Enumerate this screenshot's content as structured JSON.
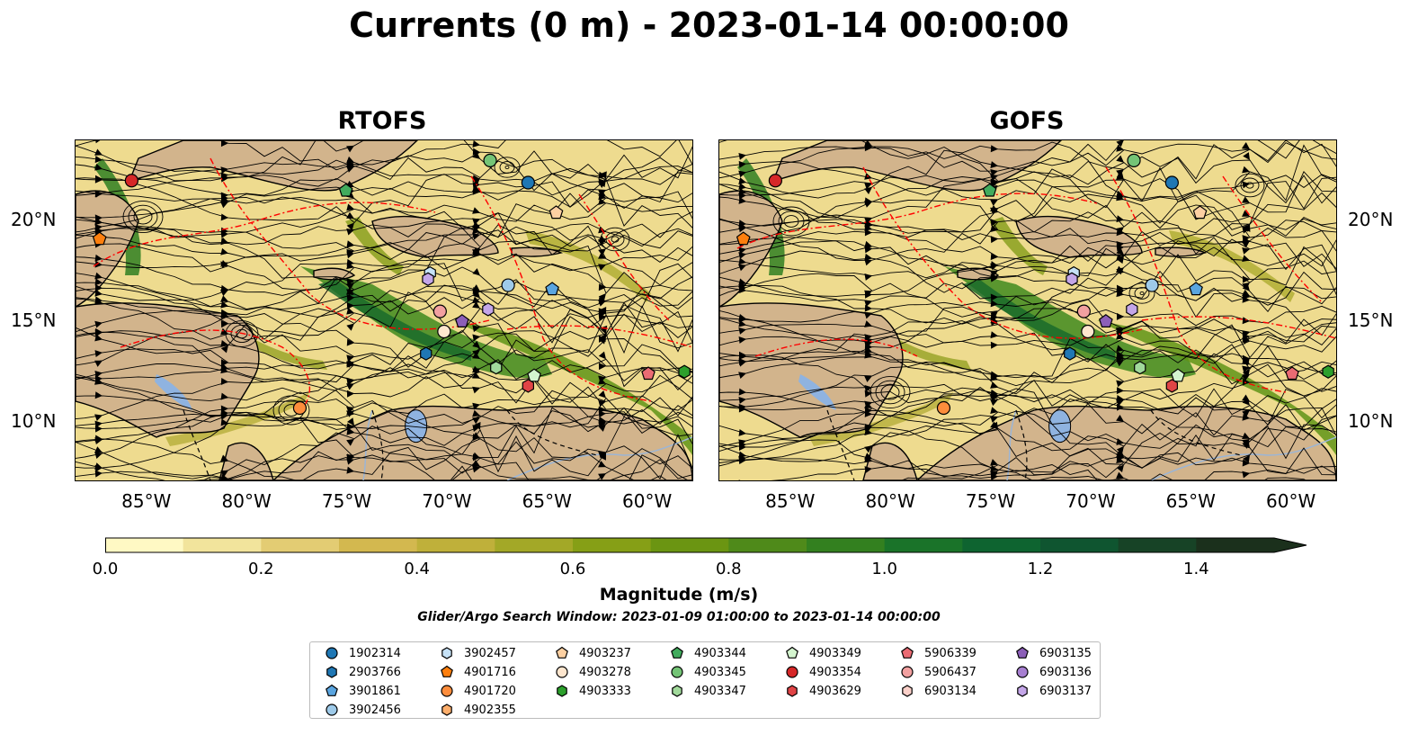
{
  "title": "Currents (0 m) - 2023-01-14 00:00:00",
  "panels": [
    {
      "title": "RTOFS"
    },
    {
      "title": "GOFS"
    }
  ],
  "axes": {
    "lat_labels": [
      "20°N",
      "15°N",
      "10°N"
    ],
    "lon_labels": [
      "85°W",
      "80°W",
      "75°W",
      "70°W",
      "65°W",
      "60°W"
    ]
  },
  "colorbar": {
    "title": "Magnitude (m/s)",
    "tick_labels": [
      "0.0",
      "0.2",
      "0.4",
      "0.6",
      "0.8",
      "1.0",
      "1.2",
      "1.4"
    ],
    "colors": [
      "#fff9c4",
      "#f2e49c",
      "#e3cc73",
      "#d3b84f",
      "#bfb03a",
      "#a3a827",
      "#869f16",
      "#6b9512",
      "#4f8a1a",
      "#33801f",
      "#1a7329",
      "#0e6430",
      "#0f5530",
      "#174326",
      "#1b301c"
    ]
  },
  "search_window": "Glider/Argo Search Window: 2023-01-09 01:00:00 to 2023-01-14 00:00:00",
  "legend": [
    {
      "label": "1902314",
      "marker": "circle",
      "color": "#1f77b4"
    },
    {
      "label": "2903766",
      "marker": "hexagon",
      "color": "#1f77b4"
    },
    {
      "label": "3901861",
      "marker": "pentagon",
      "color": "#5aa5e0"
    },
    {
      "label": "3902456",
      "marker": "circle",
      "color": "#9ecae9"
    },
    {
      "label": "3902457",
      "marker": "hexagon",
      "color": "#c6e2f7"
    },
    {
      "label": "4901716",
      "marker": "pentagon",
      "color": "#fd7f0e"
    },
    {
      "label": "4901720",
      "marker": "circle",
      "color": "#fd8d3c"
    },
    {
      "label": "4902355",
      "marker": "hexagon",
      "color": "#fdae6b"
    },
    {
      "label": "4903237",
      "marker": "pentagon",
      "color": "#fdd0a2"
    },
    {
      "label": "4903278",
      "marker": "circle",
      "color": "#fee6ce"
    },
    {
      "label": "4903333",
      "marker": "hexagon",
      "color": "#2ca02c"
    },
    {
      "label": "4903344",
      "marker": "pentagon",
      "color": "#41ab5d"
    },
    {
      "label": "4903345",
      "marker": "circle",
      "color": "#74c476"
    },
    {
      "label": "4903347",
      "marker": "hexagon",
      "color": "#a1d99b"
    },
    {
      "label": "4903349",
      "marker": "pentagon",
      "color": "#d4f5cf"
    },
    {
      "label": "4903354",
      "marker": "circle",
      "color": "#d62728"
    },
    {
      "label": "4903629",
      "marker": "hexagon",
      "color": "#e04446"
    },
    {
      "label": "5906339",
      "marker": "pentagon",
      "color": "#ea6b73"
    },
    {
      "label": "5906437",
      "marker": "circle",
      "color": "#f2a0a0"
    },
    {
      "label": "6903134",
      "marker": "hexagon",
      "color": "#fbd0c9"
    },
    {
      "label": "6903135",
      "marker": "pentagon",
      "color": "#8c5fb8"
    },
    {
      "label": "6903136",
      "marker": "circle",
      "color": "#a77fd1"
    },
    {
      "label": "6903137",
      "marker": "hexagon",
      "color": "#c4a6e8"
    }
  ]
}
